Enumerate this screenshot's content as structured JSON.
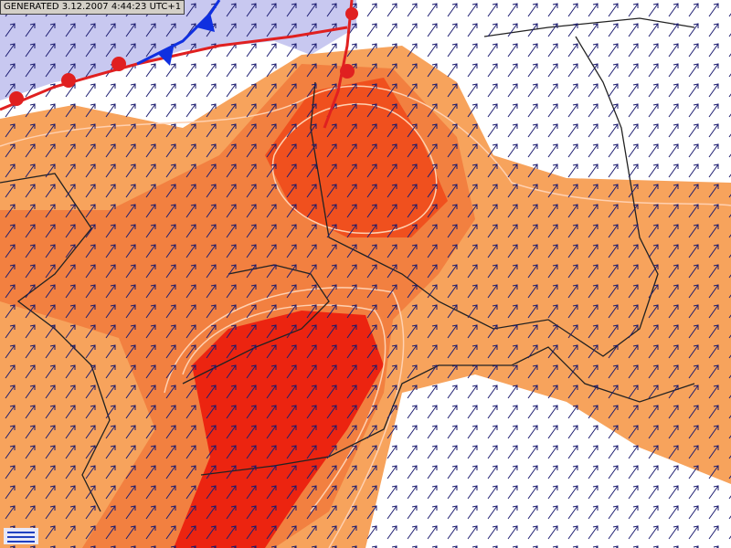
{
  "header": {
    "timestamp": "GENERATED 3.12.2007 4:44:23 UTC+1"
  }
}
